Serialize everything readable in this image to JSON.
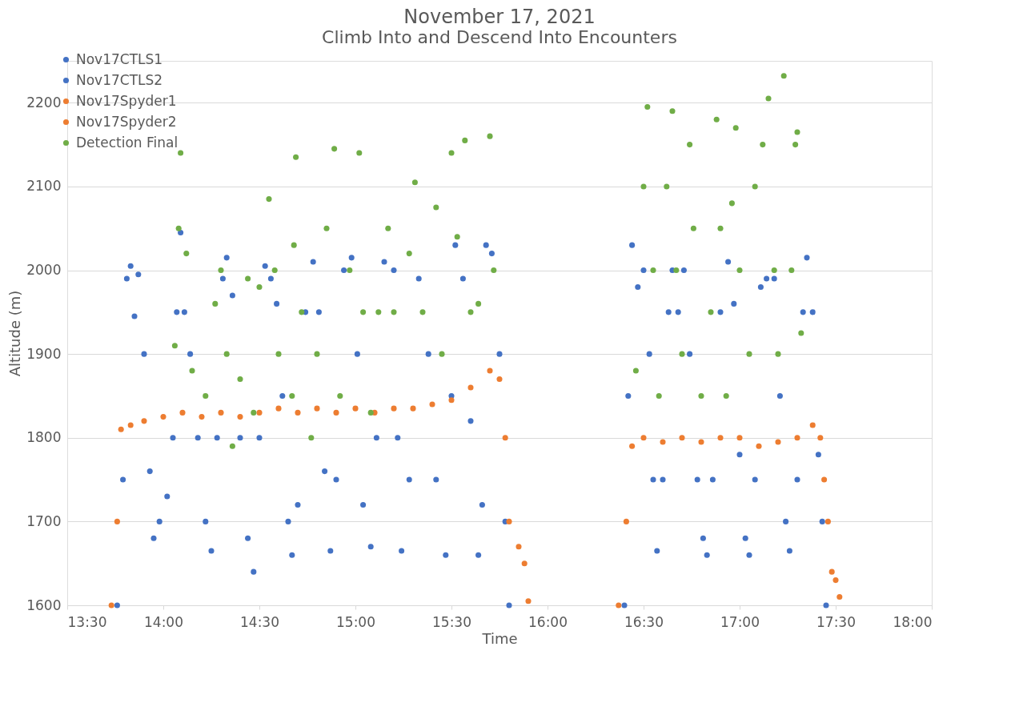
{
  "chart_data": {
    "type": "scatter",
    "title": "November 17, 2021",
    "subtitle": "Climb Into and Descend Into Encounters",
    "xlabel": "Time",
    "ylabel": "Altitude (m)",
    "xlim": [
      13.5,
      18
    ],
    "xticks": [
      {
        "value": 13.5,
        "label": "13:30"
      },
      {
        "value": 14,
        "label": "14:00"
      },
      {
        "value": 14.5,
        "label": "14:30"
      },
      {
        "value": 15,
        "label": "15:00"
      },
      {
        "value": 15.5,
        "label": "15:30"
      },
      {
        "value": 16,
        "label": "16:00"
      },
      {
        "value": 16.5,
        "label": "16:30"
      },
      {
        "value": 17,
        "label": "17:00"
      },
      {
        "value": 17.5,
        "label": "17:30"
      },
      {
        "value": 18,
        "label": "18:00"
      }
    ],
    "ylim": [
      1600,
      2250
    ],
    "yticks": [
      1600,
      1700,
      1800,
      1900,
      2000,
      2100,
      2200
    ],
    "grid": "y",
    "legend": "top left",
    "marker": "circle",
    "series": [
      {
        "name": "Nov17CTLS1",
        "color": "#4472c4",
        "x": [
          13.76,
          13.79,
          13.81,
          13.83,
          13.85,
          13.87,
          13.9,
          13.93,
          13.95,
          13.98,
          14.02,
          14.05,
          14.07,
          14.09,
          14.11,
          14.14,
          14.18,
          14.22,
          14.25,
          14.28,
          14.31,
          14.33,
          14.36,
          14.4,
          14.44,
          14.47,
          14.5,
          14.53,
          14.56,
          14.59,
          14.62,
          14.65,
          14.67,
          14.7,
          14.74,
          14.78,
          14.81,
          14.84,
          14.87,
          14.9,
          14.94,
          14.98,
          15.01,
          15.04,
          15.08,
          15.11,
          15.15,
          15.2,
          15.22,
          15.24,
          15.28,
          15.33,
          15.38,
          15.42,
          15.47,
          15.5,
          15.52,
          15.56,
          15.6,
          15.64,
          15.66,
          15.68,
          15.71,
          15.75,
          15.78,
          15.8
        ],
        "values": [
          1600,
          1750,
          1990,
          2005,
          1945,
          1995,
          1900,
          1760,
          1680,
          1700,
          1730,
          1800,
          1950,
          2045,
          1950,
          1900,
          1800,
          1700,
          1665,
          1800,
          1990,
          2015,
          1970,
          1800,
          1680,
          1640,
          1800,
          2005,
          1990,
          1960,
          1850,
          1700,
          1660,
          1720,
          1950,
          2010,
          1950,
          1760,
          1665,
          1750,
          2000,
          2015,
          1900,
          1720,
          1670,
          1800,
          2010,
          2000,
          1800,
          1665,
          1750,
          1990,
          1900,
          1750,
          1660,
          1850,
          2030,
          1990,
          1820,
          1660,
          1720,
          2030,
          2020,
          1900,
          1700,
          1600
        ]
      },
      {
        "name": "Nov17CTLS2",
        "color": "#4472c4",
        "x": [
          16.4,
          16.42,
          16.44,
          16.47,
          16.5,
          16.53,
          16.55,
          16.57,
          16.6,
          16.63,
          16.65,
          16.68,
          16.71,
          16.74,
          16.78,
          16.81,
          16.83,
          16.86,
          16.9,
          16.94,
          16.97,
          17.0,
          17.03,
          17.05,
          17.08,
          17.11,
          17.14,
          17.18,
          17.21,
          17.24,
          17.26,
          17.3,
          17.33,
          17.35,
          17.38,
          17.41,
          17.43,
          17.45
        ],
        "values": [
          1600,
          1850,
          2030,
          1980,
          2000,
          1900,
          1750,
          1665,
          1750,
          1950,
          2000,
          1950,
          2000,
          1900,
          1750,
          1680,
          1660,
          1750,
          1950,
          2010,
          1960,
          1780,
          1680,
          1660,
          1750,
          1980,
          1990,
          1990,
          1850,
          1700,
          1665,
          1750,
          1950,
          2015,
          1950,
          1780,
          1700,
          1600
        ]
      },
      {
        "name": "Nov17Spyder1",
        "color": "#ed7d31",
        "x": [
          13.73,
          13.76,
          13.78,
          13.83,
          13.9,
          14.0,
          14.1,
          14.2,
          14.3,
          14.4,
          14.5,
          14.6,
          14.7,
          14.8,
          14.9,
          15.0,
          15.1,
          15.2,
          15.3,
          15.4,
          15.5,
          15.6,
          15.7,
          15.75,
          15.78,
          15.8,
          15.85,
          15.88,
          15.9
        ],
        "values": [
          1600,
          1700,
          1810,
          1815,
          1820,
          1825,
          1830,
          1825,
          1830,
          1825,
          1830,
          1835,
          1830,
          1835,
          1830,
          1835,
          1830,
          1835,
          1835,
          1840,
          1845,
          1860,
          1880,
          1870,
          1800,
          1700,
          1670,
          1650,
          1605
        ]
      },
      {
        "name": "Nov17Spyder2",
        "color": "#ed7d31",
        "x": [
          16.37,
          16.41,
          16.44,
          16.5,
          16.6,
          16.7,
          16.8,
          16.9,
          17.0,
          17.1,
          17.2,
          17.3,
          17.38,
          17.42,
          17.44,
          17.46,
          17.48,
          17.5,
          17.52
        ],
        "values": [
          1600,
          1700,
          1790,
          1800,
          1795,
          1800,
          1795,
          1800,
          1800,
          1790,
          1795,
          1800,
          1815,
          1800,
          1750,
          1700,
          1640,
          1630,
          1610
        ]
      },
      {
        "name": "Detection Final",
        "color": "#70ad47",
        "x": [
          14.06,
          14.08,
          14.09,
          14.12,
          14.15,
          14.22,
          14.27,
          14.3,
          14.33,
          14.36,
          14.4,
          14.44,
          14.47,
          14.5,
          14.55,
          14.58,
          14.6,
          14.67,
          14.68,
          14.69,
          14.72,
          14.77,
          14.8,
          14.85,
          14.89,
          14.92,
          14.97,
          15.02,
          15.04,
          15.08,
          15.12,
          15.17,
          15.2,
          15.28,
          15.31,
          15.35,
          15.42,
          15.45,
          15.5,
          15.53,
          15.57,
          15.6,
          15.64,
          15.7,
          15.72,
          16.46,
          16.5,
          16.52,
          16.55,
          16.58,
          16.62,
          16.65,
          16.67,
          16.7,
          16.74,
          16.76,
          16.8,
          16.85,
          16.88,
          16.9,
          16.93,
          16.96,
          16.98,
          17.0,
          17.05,
          17.08,
          17.12,
          17.15,
          17.18,
          17.2,
          17.23,
          17.27,
          17.29,
          17.3,
          17.32
        ],
        "values": [
          1910,
          2050,
          2140,
          2020,
          1880,
          1850,
          1960,
          2000,
          1900,
          1790,
          1870,
          1990,
          1830,
          1980,
          2085,
          2000,
          1900,
          1850,
          2030,
          2135,
          1950,
          1800,
          1900,
          2050,
          2145,
          1850,
          2000,
          2140,
          1950,
          1830,
          1950,
          2050,
          1950,
          2020,
          2105,
          1950,
          2075,
          1900,
          2140,
          2040,
          2155,
          1950,
          1960,
          2160,
          2000,
          1880,
          2100,
          2195,
          2000,
          1850,
          2100,
          2190,
          2000,
          1900,
          2150,
          2050,
          1850,
          1950,
          2180,
          2050,
          1850,
          2080,
          2170,
          2000,
          1900,
          2100,
          2150,
          2205,
          2000,
          1900,
          2232,
          2000,
          2150,
          2165,
          1925
        ]
      }
    ]
  }
}
